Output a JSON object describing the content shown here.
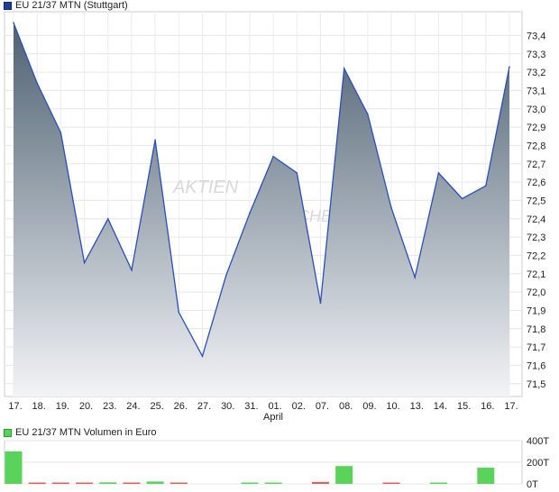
{
  "chart_data": [
    {
      "type": "area",
      "title": "EU 21/37 MTN (Stuttgart)",
      "x": [
        "17.",
        "18.",
        "19.",
        "20.",
        "23.",
        "24.",
        "25.",
        "26.",
        "27.",
        "30.",
        "31.",
        "01.",
        "02.",
        "07.",
        "08.",
        "09.",
        "10.",
        "13.",
        "14.",
        "15.",
        "16.",
        "17."
      ],
      "month_label": "April",
      "y_values": [
        73.47,
        73.14,
        72.87,
        72.16,
        72.4,
        72.12,
        72.83,
        71.89,
        71.65,
        72.09,
        72.43,
        72.74,
        72.65,
        71.94,
        73.22,
        72.97,
        72.46,
        72.08,
        72.65,
        72.51,
        72.58,
        73.23
      ],
      "ylim": [
        71.43,
        73.53
      ],
      "yticks": [
        "71,5",
        "71,6",
        "71,7",
        "71,8",
        "71,9",
        "72,0",
        "72,1",
        "72,2",
        "72,3",
        "72,4",
        "72,5",
        "72,6",
        "72,7",
        "72,8",
        "72,9",
        "73,0",
        "73,1",
        "73,2",
        "73,3",
        "73,4"
      ],
      "ytick_values": [
        71.5,
        71.6,
        71.7,
        71.8,
        71.9,
        72.0,
        72.1,
        72.2,
        72.3,
        72.4,
        72.5,
        72.6,
        72.7,
        72.8,
        72.9,
        73.0,
        73.1,
        73.2,
        73.3,
        73.4
      ],
      "grid": true,
      "line_color": "#2a4fb8",
      "fill_top_color": "#4e6172",
      "fill_bottom_color": "#f2f3f6"
    },
    {
      "type": "bar",
      "title": "EU 21/37 MTN Volumen in Euro",
      "values": [
        300,
        12,
        8,
        6,
        14,
        6,
        22,
        12,
        0,
        0,
        6,
        10,
        0,
        18,
        165,
        0,
        12,
        0,
        10,
        0,
        150,
        0
      ],
      "colors": [
        "up",
        "down",
        "down",
        "down",
        "up",
        "down",
        "up",
        "down",
        "up",
        "up",
        "up",
        "up",
        "up",
        "down",
        "up",
        "up",
        "down",
        "up",
        "up",
        "up",
        "up",
        "up"
      ],
      "ylim": [
        0,
        400
      ],
      "yticks": [
        "0T",
        "200T",
        "400T"
      ],
      "ytick_values": [
        0,
        200,
        400
      ],
      "up_color": "#5ad35a",
      "down_color": "#e06060"
    }
  ],
  "watermark": [
    "AKTIEN",
    "CHECK"
  ]
}
